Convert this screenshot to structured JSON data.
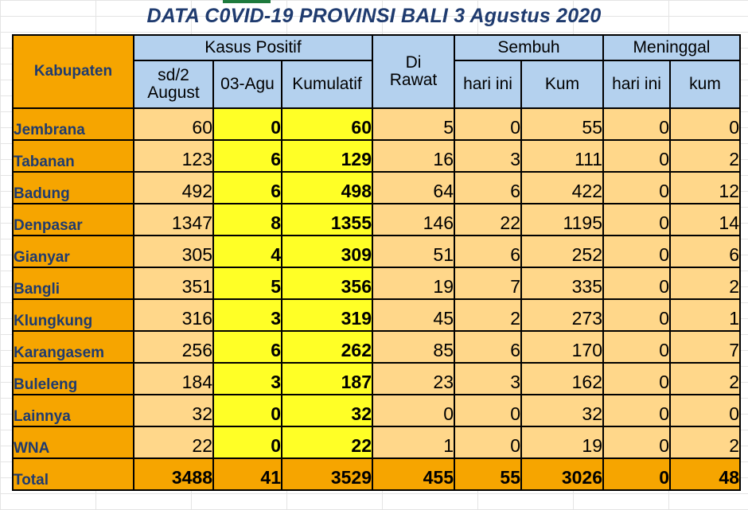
{
  "title": "DATA C0VID-19 PROVINSI BALI 3 Agustus 2020",
  "headers": {
    "kabupaten": "Kabupaten",
    "kasus_positif": "Kasus Positif",
    "di_rawat_1": "Di",
    "di_rawat_2": "Rawat",
    "sembuh": "Sembuh",
    "meninggal": "Meninggal",
    "sd2_1": "sd/2",
    "sd2_2": "August",
    "tgl": "03-Agu",
    "kumulatif": "Kumulatif",
    "sembuh_hari_ini": "hari ini",
    "sembuh_kum": "Kum",
    "meninggal_hari_ini": "hari ini",
    "meninggal_kum": "kum"
  },
  "rows": [
    {
      "name": "Jembrana",
      "sd2": "60",
      "tgl": "0",
      "kum": "60",
      "rawat": "5",
      "sh": "0",
      "sk": "55",
      "mh": "0",
      "mk": "0"
    },
    {
      "name": "Tabanan",
      "sd2": "123",
      "tgl": "6",
      "kum": "129",
      "rawat": "16",
      "sh": "3",
      "sk": "111",
      "mh": "0",
      "mk": "2"
    },
    {
      "name": "Badung",
      "sd2": "492",
      "tgl": "6",
      "kum": "498",
      "rawat": "64",
      "sh": "6",
      "sk": "422",
      "mh": "0",
      "mk": "12"
    },
    {
      "name": "Denpasar",
      "sd2": "1347",
      "tgl": "8",
      "kum": "1355",
      "rawat": "146",
      "sh": "22",
      "sk": "1195",
      "mh": "0",
      "mk": "14"
    },
    {
      "name": "Gianyar",
      "sd2": "305",
      "tgl": "4",
      "kum": "309",
      "rawat": "51",
      "sh": "6",
      "sk": "252",
      "mh": "0",
      "mk": "6"
    },
    {
      "name": "Bangli",
      "sd2": "351",
      "tgl": "5",
      "kum": "356",
      "rawat": "19",
      "sh": "7",
      "sk": "335",
      "mh": "0",
      "mk": "2"
    },
    {
      "name": "Klungkung",
      "sd2": "316",
      "tgl": "3",
      "kum": "319",
      "rawat": "45",
      "sh": "2",
      "sk": "273",
      "mh": "0",
      "mk": "1"
    },
    {
      "name": "Karangasem",
      "sd2": "256",
      "tgl": "6",
      "kum": "262",
      "rawat": "85",
      "sh": "6",
      "sk": "170",
      "mh": "0",
      "mk": "7"
    },
    {
      "name": "Buleleng",
      "sd2": "184",
      "tgl": "3",
      "kum": "187",
      "rawat": "23",
      "sh": "3",
      "sk": "162",
      "mh": "0",
      "mk": "2"
    },
    {
      "name": "Lainnya",
      "sd2": "32",
      "tgl": "0",
      "kum": "32",
      "rawat": "0",
      "sh": "0",
      "sk": "32",
      "mh": "0",
      "mk": "0"
    },
    {
      "name": "WNA",
      "sd2": "22",
      "tgl": "0",
      "kum": "22",
      "rawat": "1",
      "sh": "0",
      "sk": "19",
      "mh": "0",
      "mk": "2"
    }
  ],
  "total": {
    "name": "Total",
    "sd2": "3488",
    "tgl": "41",
    "kum": "3529",
    "rawat": "455",
    "sh": "55",
    "sk": "3026",
    "mh": "0",
    "mk": "48"
  },
  "colors": {
    "header_blue": "#b4d1ee",
    "orange": "#f6a500",
    "light_orange": "#ffd78a",
    "yellow": "#ffff26",
    "title_navy": "#1f3b6f",
    "sheet_green": "#1e7a3d"
  }
}
